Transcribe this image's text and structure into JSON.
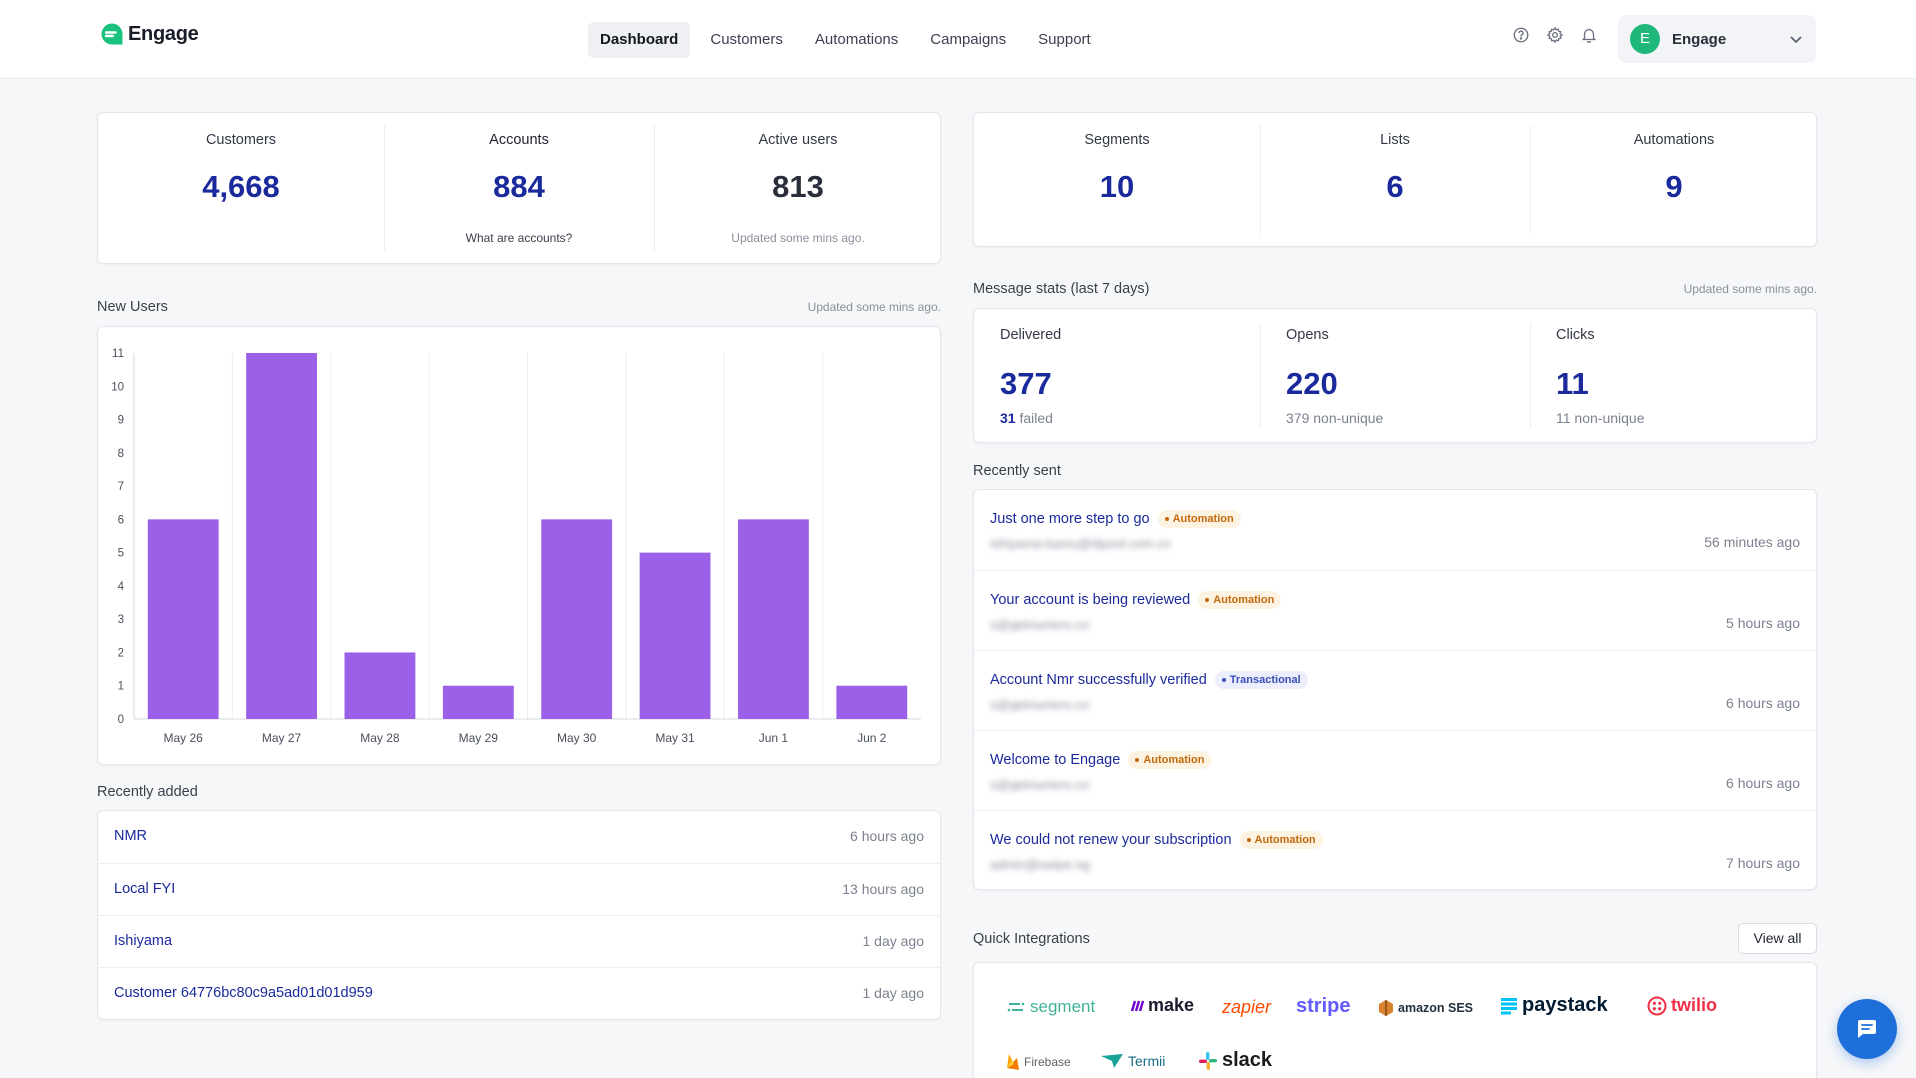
{
  "app": {
    "brand": "Engage"
  },
  "nav": [
    {
      "label": "Dashboard",
      "active": true
    },
    {
      "label": "Customers"
    },
    {
      "label": "Automations"
    },
    {
      "label": "Campaigns"
    },
    {
      "label": "Support"
    }
  ],
  "account": {
    "initial": "E",
    "name": "Engage",
    "avatar_color": "#1fb87a"
  },
  "summary_left": {
    "customers": {
      "label": "Customers",
      "value": "4,668"
    },
    "accounts": {
      "label": "Accounts",
      "value": "884",
      "sub": "What are accounts?"
    },
    "active_users": {
      "label": "Active users",
      "value": "813",
      "sub": "Updated some mins ago."
    }
  },
  "summary_right": {
    "segments": {
      "label": "Segments",
      "value": "10"
    },
    "lists": {
      "label": "Lists",
      "value": "6"
    },
    "automations": {
      "label": "Automations",
      "value": "9"
    }
  },
  "new_users": {
    "title": "New Users",
    "updated": "Updated some mins ago."
  },
  "chart_data": {
    "type": "bar",
    "categories": [
      "May 26",
      "May 27",
      "May 28",
      "May 29",
      "May 30",
      "May 31",
      "Jun 1",
      "Jun 2"
    ],
    "values": [
      6,
      11,
      2,
      1,
      6,
      5,
      6,
      1
    ],
    "yticks": [
      0,
      1,
      2,
      3,
      4,
      5,
      6,
      7,
      8,
      9,
      10,
      11
    ],
    "ylim": [
      0,
      11
    ],
    "bar_color": "#9b5fe8",
    "grid": "vertical"
  },
  "message_stats": {
    "title": "Message stats (last 7 days)",
    "updated": "Updated some mins ago.",
    "delivered": {
      "label": "Delivered",
      "value": "377",
      "sub_num": "31",
      "sub_text": "failed"
    },
    "opens": {
      "label": "Opens",
      "value": "220",
      "sub": "379 non-unique"
    },
    "clicks": {
      "label": "Clicks",
      "value": "11",
      "sub": "11 non-unique"
    }
  },
  "recently_sent": {
    "title": "Recently sent",
    "items": [
      {
        "subject": "Just one more step to go",
        "badge": "Automation",
        "email": "ishiyama-kaoru@dipsol.com.cn",
        "time": "56 minutes ago"
      },
      {
        "subject": "Your account is being reviewed",
        "badge": "Automation",
        "email": "s@getnumero.co",
        "time": "5 hours ago"
      },
      {
        "subject": "Account Nmr successfully verified",
        "badge": "Transactional",
        "email": "s@getnumero.co",
        "time": "6 hours ago"
      },
      {
        "subject": "Welcome to Engage",
        "badge": "Automation",
        "email": "s@getnumero.co",
        "time": "6 hours ago"
      },
      {
        "subject": "We could not renew your subscription",
        "badge": "Automation",
        "email": "admin@swipe.ng",
        "time": "7 hours ago"
      }
    ]
  },
  "recently_added": {
    "title": "Recently added",
    "items": [
      {
        "name": "NMR",
        "time": "6 hours ago"
      },
      {
        "name": "Local FYI",
        "time": "13 hours ago"
      },
      {
        "name": "Ishiyama",
        "time": "1 day ago"
      },
      {
        "name": "Customer 64776bc80c9a5ad01d01d959",
        "time": "1 day ago"
      }
    ]
  },
  "integrations": {
    "title": "Quick Integrations",
    "view_all": "View all",
    "items": [
      {
        "name": "segment",
        "icon": "segment-logo"
      },
      {
        "name": "make",
        "icon": "make-logo"
      },
      {
        "name": "zapier",
        "icon": "zapier-logo"
      },
      {
        "name": "stripe",
        "icon": "stripe-logo"
      },
      {
        "name": "amazon SES",
        "icon": "amazon-ses-logo"
      },
      {
        "name": "paystack",
        "icon": "paystack-logo"
      },
      {
        "name": "twilio",
        "icon": "twilio-logo"
      },
      {
        "name": "Firebase",
        "icon": "firebase-logo"
      },
      {
        "name": "Termii",
        "icon": "termii-logo"
      },
      {
        "name": "slack",
        "icon": "slack-logo"
      }
    ]
  }
}
